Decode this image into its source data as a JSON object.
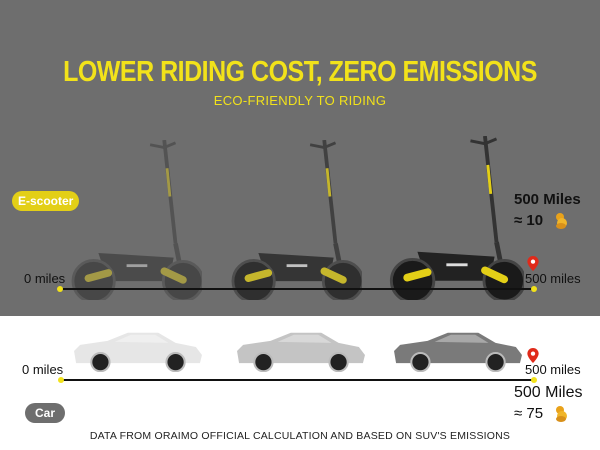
{
  "header": {
    "title": "LOWER RIDING COST, ZERO EMISSIONS",
    "subtitle": "ECO-FRIENDLY TO RIDING"
  },
  "scooter_row": {
    "label": "E-scooter",
    "start_label": "0 miles",
    "end_label": "500 miles",
    "distance": "500 Miles",
    "cost": "≈ 10",
    "cost_icon": "gold-coins-icon",
    "marker_icon": "location-pin-icon"
  },
  "car_row": {
    "label": "Car",
    "start_label": "0 miles",
    "end_label": "500 miles",
    "distance": "500 Miles",
    "cost": "≈ 75",
    "cost_icon": "gold-coins-icon",
    "marker_icon": "location-pin-icon"
  },
  "footer": {
    "note": "DATA FROM ORAIMO OFFICIAL CALCULATION AND BASED ON SUV'S EMISSIONS"
  },
  "colors": {
    "accent": "#f2e21a",
    "top_background": "#6e6e6e",
    "pin": "#e02a1a",
    "car_pill": "#6e6e6e"
  }
}
